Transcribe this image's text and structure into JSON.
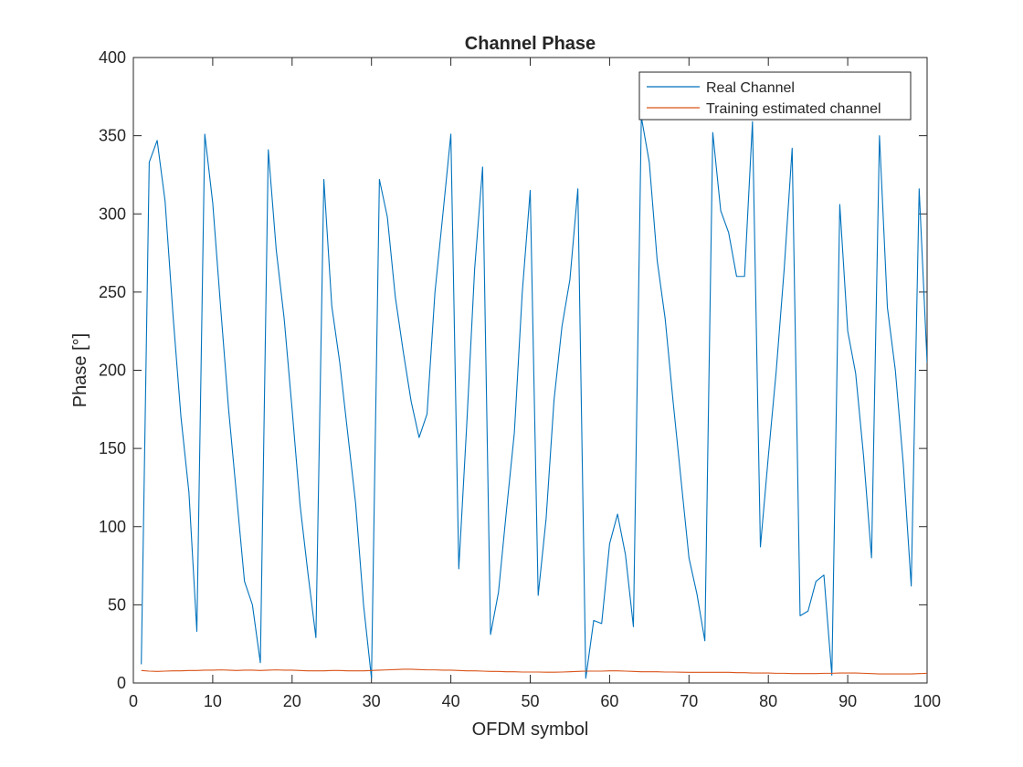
{
  "chart_data": {
    "type": "line",
    "title": "Channel Phase",
    "xlabel": "OFDM symbol",
    "ylabel": "Phase [°]",
    "xlim": [
      0,
      100
    ],
    "ylim": [
      0,
      400
    ],
    "xticks": [
      0,
      10,
      20,
      30,
      40,
      50,
      60,
      70,
      80,
      90,
      100
    ],
    "yticks": [
      0,
      50,
      100,
      150,
      200,
      250,
      300,
      350,
      400
    ],
    "grid": false,
    "legend_position": "top-right",
    "x": [
      1,
      2,
      3,
      4,
      5,
      6,
      7,
      8,
      9,
      10,
      11,
      12,
      13,
      14,
      15,
      16,
      17,
      18,
      19,
      20,
      21,
      22,
      23,
      24,
      25,
      26,
      27,
      28,
      29,
      30,
      31,
      32,
      33,
      34,
      35,
      36,
      37,
      38,
      39,
      40,
      41,
      42,
      43,
      44,
      45,
      46,
      47,
      48,
      49,
      50,
      51,
      52,
      53,
      54,
      55,
      56,
      57,
      58,
      59,
      60,
      61,
      62,
      63,
      64,
      65,
      66,
      67,
      68,
      69,
      70,
      71,
      72,
      73,
      74,
      75,
      76,
      77,
      78,
      79,
      80,
      81,
      82,
      83,
      84,
      85,
      86,
      87,
      88,
      89,
      90,
      91,
      92,
      93,
      94,
      95,
      96,
      97,
      98,
      99,
      100
    ],
    "series": [
      {
        "name": "Real Channel",
        "color": "#0072BD",
        "values": [
          12,
          333,
          347,
          308,
          235,
          170,
          122,
          33,
          351,
          307,
          240,
          175,
          120,
          65,
          50,
          13,
          341,
          277,
          233,
          175,
          114,
          70,
          29,
          322,
          241,
          205,
          160,
          115,
          50,
          3,
          322,
          298,
          247,
          212,
          180,
          157,
          172,
          250,
          300,
          351,
          73,
          165,
          265,
          330,
          31,
          58,
          110,
          160,
          250,
          315,
          56,
          105,
          181,
          228,
          258,
          316,
          3,
          40,
          38,
          89,
          108,
          82,
          36,
          362,
          333,
          270,
          233,
          180,
          130,
          80,
          57,
          27,
          352,
          302,
          288,
          260,
          260,
          359,
          87,
          145,
          200,
          265,
          342,
          43,
          46,
          65,
          69,
          5,
          306,
          225,
          198,
          145,
          80,
          350,
          240,
          200,
          140,
          62,
          316,
          205
        ]
      },
      {
        "name": "Training estimated channel",
        "color": "#D95319",
        "values": [
          8,
          7.6,
          7.4,
          7.6,
          7.8,
          7.8,
          8.0,
          8.0,
          8.2,
          8.2,
          8.4,
          8.2,
          8.0,
          8.2,
          8.2,
          8.0,
          8.2,
          8.4,
          8.2,
          8.2,
          8.0,
          7.8,
          7.8,
          7.8,
          8.0,
          8.0,
          7.8,
          7.8,
          7.8,
          8.0,
          8.2,
          8.4,
          8.6,
          8.8,
          8.8,
          8.6,
          8.4,
          8.4,
          8.2,
          8.2,
          8.0,
          7.8,
          7.8,
          7.6,
          7.4,
          7.4,
          7.2,
          7.2,
          7.0,
          7.0,
          7.0,
          6.9,
          6.9,
          7.0,
          7.2,
          7.4,
          7.6,
          7.6,
          7.6,
          7.8,
          7.8,
          7.6,
          7.4,
          7.2,
          7.2,
          7.2,
          7.0,
          7.0,
          6.9,
          6.8,
          6.8,
          6.8,
          6.8,
          6.8,
          6.8,
          6.6,
          6.6,
          6.4,
          6.4,
          6.4,
          6.2,
          6.2,
          6.0,
          6.0,
          6.0,
          6.0,
          6.2,
          6.2,
          6.4,
          6.4,
          6.4,
          6.2,
          6.0,
          5.8,
          5.8,
          5.8,
          5.8,
          5.8,
          6.0,
          6.2
        ]
      }
    ]
  }
}
